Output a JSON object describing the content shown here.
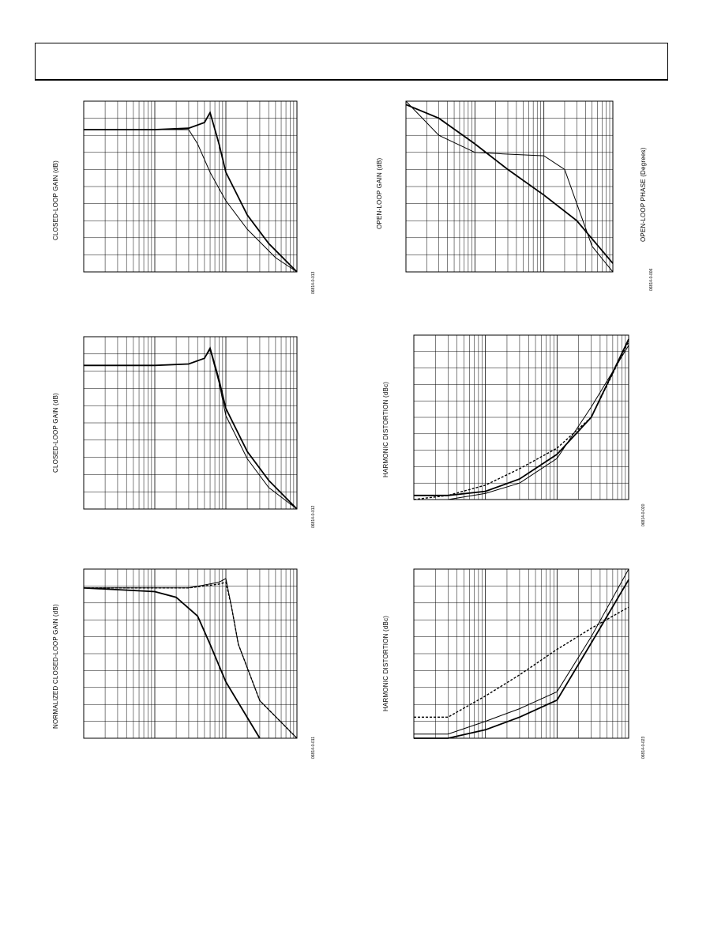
{
  "page": {
    "header": {
      "text": ""
    }
  },
  "charts": [
    {
      "id": "c1",
      "ylabel": "CLOSED-LOOP GAIN (dB)",
      "fig_id": "06814-0-013",
      "y2label": ""
    },
    {
      "id": "c2",
      "ylabel": "OPEN-LOOP GAIN (dB)",
      "fig_id": "06814-0-006",
      "y2label": "OPEN-LOOP PHASE (Degrees)"
    },
    {
      "id": "c3",
      "ylabel": "CLOSED-LOOP GAIN (dB)",
      "fig_id": "06814-0-012",
      "y2label": ""
    },
    {
      "id": "c4",
      "ylabel": "HARMONIC DISTORTION (dBc)",
      "fig_id": "06814-0-020",
      "y2label": ""
    },
    {
      "id": "c5",
      "ylabel": "NORMALIZED CLOSED-LOOP GAIN (dB)",
      "fig_id": "06814-0-011",
      "y2label": ""
    },
    {
      "id": "c6",
      "ylabel": "HARMONIC DISTORTION (dBc)",
      "fig_id": "06814-0-023",
      "y2label": ""
    }
  ],
  "chart_data": [
    {
      "type": "line",
      "xscale": "log",
      "xlim": [
        1,
        1000
      ],
      "ylim": [
        -10,
        2
      ],
      "series": [
        {
          "x": [
            1,
            10,
            30,
            50,
            60,
            80,
            100,
            200,
            400,
            1000
          ],
          "y": [
            0,
            0,
            0.1,
            0.5,
            1.2,
            -1,
            -3,
            -6,
            -8,
            -10
          ]
        },
        {
          "x": [
            1,
            10,
            30,
            40,
            60,
            100,
            200,
            500,
            1000
          ],
          "y": [
            0,
            0,
            0,
            -1,
            -3,
            -5,
            -7,
            -9,
            -10
          ]
        }
      ]
    },
    {
      "type": "line",
      "xscale": "log",
      "xlim": [
        1,
        1000
      ],
      "ylim": [
        0,
        100
      ],
      "series": [
        {
          "x": [
            1,
            3,
            10,
            30,
            100,
            300,
            1000
          ],
          "y": [
            98,
            90,
            75,
            60,
            45,
            30,
            5
          ]
        },
        {
          "x": [
            1,
            3,
            10,
            30,
            100,
            200,
            300,
            500,
            1000
          ],
          "y": [
            100,
            80,
            70,
            69,
            68,
            60,
            40,
            15,
            0
          ]
        }
      ]
    },
    {
      "type": "line",
      "xscale": "log",
      "xlim": [
        1,
        1000
      ],
      "ylim": [
        -10,
        2
      ],
      "series": [
        {
          "x": [
            1,
            10,
            30,
            50,
            60,
            80,
            100,
            200,
            400,
            1000
          ],
          "y": [
            0,
            0,
            0.1,
            0.5,
            1.2,
            -1,
            -3,
            -6,
            -8,
            -10
          ]
        },
        {
          "x": [
            1,
            10,
            30,
            50,
            60,
            80,
            100,
            200,
            400,
            1000
          ],
          "y": [
            0,
            0,
            0.1,
            0.5,
            1.1,
            -1.2,
            -3.5,
            -6.5,
            -8.5,
            -10
          ]
        }
      ]
    },
    {
      "type": "line",
      "xscale": "log",
      "xlim": [
        1,
        1000
      ],
      "ylim": [
        -100,
        -20
      ],
      "series": [
        {
          "x": [
            1,
            3,
            10,
            30,
            100,
            300,
            1000
          ],
          "y": [
            -98,
            -98,
            -96,
            -90,
            -78,
            -60,
            -22
          ]
        },
        {
          "x": [
            1,
            3,
            10,
            30,
            100,
            300,
            1000
          ],
          "y": [
            -100,
            -100,
            -97,
            -92,
            -80,
            -55,
            -25
          ]
        },
        {
          "x": [
            1,
            3,
            10,
            30,
            100,
            300,
            1000
          ],
          "y": [
            -100,
            -98,
            -93,
            -85,
            -75,
            -60,
            -23
          ]
        }
      ]
    },
    {
      "type": "line",
      "xscale": "log",
      "xlim": [
        1,
        1000
      ],
      "ylim": [
        -8,
        1
      ],
      "series": [
        {
          "x": [
            1,
            10,
            20,
            40,
            60,
            100,
            300
          ],
          "y": [
            0,
            -0.2,
            -0.5,
            -1.5,
            -3,
            -5,
            -8
          ]
        },
        {
          "x": [
            1,
            30,
            80,
            100,
            120,
            150,
            300,
            1000
          ],
          "y": [
            0,
            0,
            0.3,
            0.5,
            -1,
            -3,
            -6,
            -8
          ]
        },
        {
          "x": [
            1,
            30,
            80,
            100,
            120,
            150,
            300,
            1000
          ],
          "y": [
            0,
            0,
            0.2,
            0.3,
            -1,
            -3,
            -6,
            -8
          ]
        }
      ]
    },
    {
      "type": "line",
      "xscale": "log",
      "xlim": [
        1,
        1000
      ],
      "ylim": [
        -100,
        -20
      ],
      "series": [
        {
          "x": [
            1,
            3,
            10,
            30,
            100,
            300,
            1000
          ],
          "y": [
            -100,
            -100,
            -96,
            -90,
            -82,
            -55,
            -25
          ]
        },
        {
          "x": [
            1,
            3,
            10,
            30,
            100,
            300,
            1000
          ],
          "y": [
            -98,
            -98,
            -92,
            -86,
            -78,
            -52,
            -20
          ]
        },
        {
          "x": [
            1,
            3,
            10,
            30,
            100,
            300,
            1000
          ],
          "y": [
            -90,
            -90,
            -80,
            -70,
            -58,
            -48,
            -38
          ]
        }
      ]
    }
  ]
}
